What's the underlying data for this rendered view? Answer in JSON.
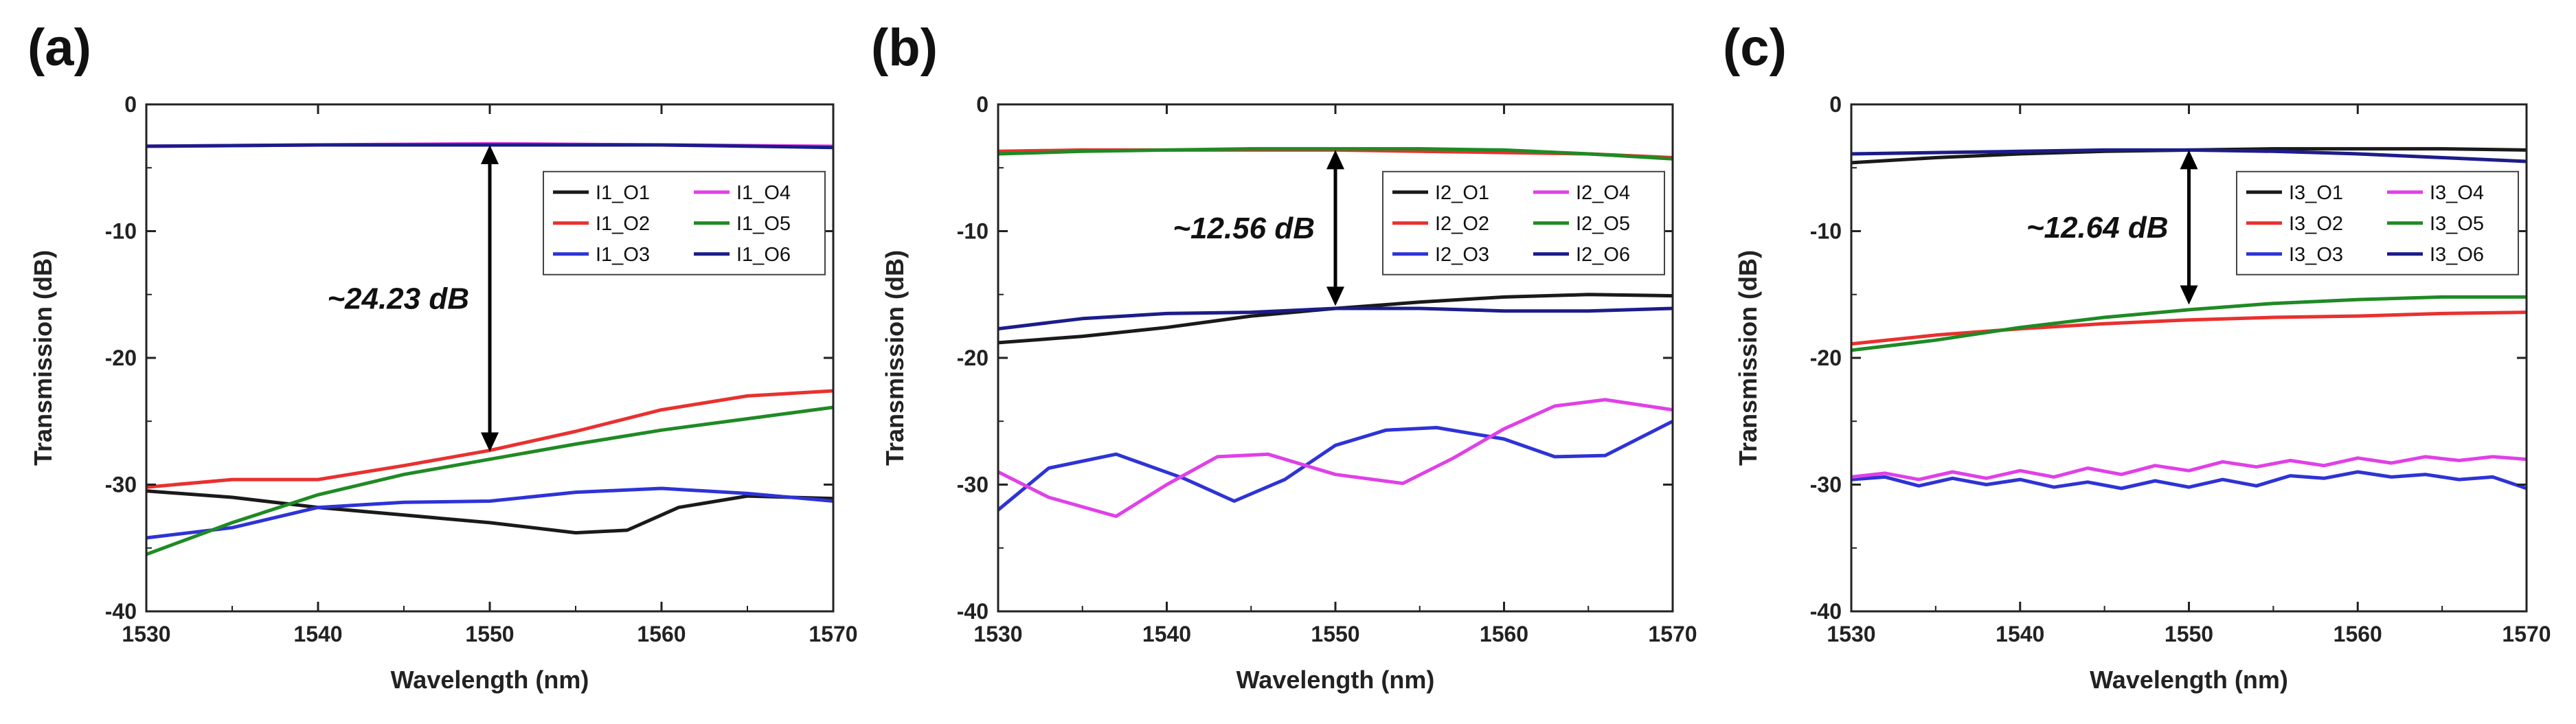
{
  "figure": {
    "panel_count": 3
  },
  "chart_data": [
    {
      "type": "line",
      "panel_label": "(a)",
      "xlabel": "Wavelength (nm)",
      "ylabel": "Transmission (dB)",
      "xlim": [
        1530,
        1570
      ],
      "ylim": [
        -40,
        0
      ],
      "xticks": [
        1530,
        1540,
        1550,
        1560,
        1570
      ],
      "yticks": [
        -40,
        -30,
        -20,
        -10,
        0
      ],
      "legend_position": "top-right",
      "annotation": {
        "text": "~24.23 dB",
        "arrow_x": 1550,
        "arrow_y_top": -3.2,
        "arrow_y_bottom": -27.4
      },
      "series": [
        {
          "name": "I1_O1",
          "color": "#1a1a1a",
          "x": [
            1530,
            1535,
            1540,
            1545,
            1550,
            1555,
            1558,
            1561,
            1565,
            1570
          ],
          "y": [
            -30.5,
            -31.0,
            -31.8,
            -32.4,
            -33.0,
            -33.8,
            -33.6,
            -31.8,
            -30.9,
            -31.1
          ]
        },
        {
          "name": "I1_O2",
          "color": "#e8312f",
          "x": [
            1530,
            1535,
            1540,
            1545,
            1550,
            1555,
            1560,
            1565,
            1570
          ],
          "y": [
            -30.2,
            -29.6,
            -29.6,
            -28.5,
            -27.3,
            -25.8,
            -24.1,
            -23.0,
            -22.6
          ]
        },
        {
          "name": "I1_O3",
          "color": "#2e33d6",
          "x": [
            1530,
            1535,
            1540,
            1545,
            1550,
            1555,
            1560,
            1565,
            1570
          ],
          "y": [
            -34.2,
            -33.4,
            -31.8,
            -31.4,
            -31.3,
            -30.6,
            -30.3,
            -30.7,
            -31.3
          ]
        },
        {
          "name": "I1_O4",
          "color": "#e040e8",
          "x": [
            1530,
            1540,
            1550,
            1560,
            1570
          ],
          "y": [
            -3.3,
            -3.2,
            -3.1,
            -3.2,
            -3.3
          ]
        },
        {
          "name": "I1_O5",
          "color": "#1f8a24",
          "x": [
            1530,
            1535,
            1540,
            1545,
            1550,
            1555,
            1560,
            1565,
            1570
          ],
          "y": [
            -35.5,
            -33.0,
            -30.8,
            -29.2,
            -28.0,
            -26.8,
            -25.7,
            -24.8,
            -23.9
          ]
        },
        {
          "name": "I1_O6",
          "color": "#1c1c8a",
          "x": [
            1530,
            1540,
            1550,
            1560,
            1570
          ],
          "y": [
            -3.3,
            -3.2,
            -3.2,
            -3.2,
            -3.4
          ]
        }
      ]
    },
    {
      "type": "line",
      "panel_label": "(b)",
      "xlabel": "Wavelength (nm)",
      "ylabel": "Transmission (dB)",
      "xlim": [
        1530,
        1570
      ],
      "ylim": [
        -40,
        0
      ],
      "xticks": [
        1530,
        1540,
        1550,
        1560,
        1570
      ],
      "yticks": [
        -40,
        -30,
        -20,
        -10,
        0
      ],
      "legend_position": "top-right",
      "annotation": {
        "text": "~12.56 dB",
        "arrow_x": 1550,
        "arrow_y_top": -3.6,
        "arrow_y_bottom": -15.9
      },
      "series": [
        {
          "name": "I2_O1",
          "color": "#1a1a1a",
          "x": [
            1530,
            1535,
            1540,
            1545,
            1550,
            1555,
            1560,
            1565,
            1570
          ],
          "y": [
            -18.8,
            -18.3,
            -17.6,
            -16.7,
            -16.1,
            -15.6,
            -15.2,
            -15.0,
            -15.1
          ]
        },
        {
          "name": "I2_O2",
          "color": "#e8312f",
          "x": [
            1530,
            1535,
            1540,
            1545,
            1550,
            1555,
            1560,
            1565,
            1570
          ],
          "y": [
            -3.7,
            -3.6,
            -3.6,
            -3.6,
            -3.6,
            -3.7,
            -3.8,
            -3.9,
            -4.2
          ]
        },
        {
          "name": "I2_O3",
          "color": "#2e33d6",
          "x": [
            1530,
            1533,
            1537,
            1541,
            1544,
            1547,
            1550,
            1553,
            1556,
            1560,
            1563,
            1566,
            1570
          ],
          "y": [
            -32.0,
            -28.7,
            -27.6,
            -29.5,
            -31.3,
            -29.6,
            -26.9,
            -25.7,
            -25.5,
            -26.4,
            -27.8,
            -27.7,
            -25.0
          ]
        },
        {
          "name": "I2_O4",
          "color": "#e040e8",
          "x": [
            1530,
            1533,
            1537,
            1540,
            1543,
            1546,
            1550,
            1554,
            1557,
            1560,
            1563,
            1566,
            1570
          ],
          "y": [
            -29.0,
            -31.0,
            -32.5,
            -30.0,
            -27.8,
            -27.6,
            -29.2,
            -29.9,
            -27.9,
            -25.6,
            -23.8,
            -23.3,
            -24.1
          ]
        },
        {
          "name": "I2_O5",
          "color": "#1f8a24",
          "x": [
            1530,
            1535,
            1540,
            1545,
            1550,
            1555,
            1560,
            1565,
            1570
          ],
          "y": [
            -3.9,
            -3.7,
            -3.6,
            -3.5,
            -3.5,
            -3.5,
            -3.6,
            -3.9,
            -4.3
          ]
        },
        {
          "name": "I2_O6",
          "color": "#1c1c8a",
          "x": [
            1530,
            1535,
            1540,
            1545,
            1550,
            1555,
            1560,
            1565,
            1570
          ],
          "y": [
            -17.7,
            -16.9,
            -16.5,
            -16.4,
            -16.1,
            -16.1,
            -16.3,
            -16.3,
            -16.1
          ]
        }
      ]
    },
    {
      "type": "line",
      "panel_label": "(c)",
      "xlabel": "Wavelength (nm)",
      "ylabel": "Transmission (dB)",
      "xlim": [
        1530,
        1570
      ],
      "ylim": [
        -40,
        0
      ],
      "xticks": [
        1530,
        1540,
        1550,
        1560,
        1570
      ],
      "yticks": [
        -40,
        -30,
        -20,
        -10,
        0
      ],
      "legend_position": "top-right",
      "annotation": {
        "text": "~12.64 dB",
        "arrow_x": 1550,
        "arrow_y_top": -3.6,
        "arrow_y_bottom": -15.8
      },
      "series": [
        {
          "name": "I3_O1",
          "color": "#1a1a1a",
          "x": [
            1530,
            1535,
            1540,
            1545,
            1550,
            1555,
            1560,
            1565,
            1570
          ],
          "y": [
            -4.6,
            -4.2,
            -3.9,
            -3.7,
            -3.6,
            -3.5,
            -3.5,
            -3.5,
            -3.6
          ]
        },
        {
          "name": "I3_O2",
          "color": "#e8312f",
          "x": [
            1530,
            1535,
            1540,
            1545,
            1550,
            1555,
            1560,
            1565,
            1570
          ],
          "y": [
            -18.9,
            -18.2,
            -17.7,
            -17.3,
            -17.0,
            -16.8,
            -16.7,
            -16.5,
            -16.4
          ]
        },
        {
          "name": "I3_O3",
          "color": "#2e33d6",
          "x": [
            1530,
            1532,
            1534,
            1536,
            1538,
            1540,
            1542,
            1544,
            1546,
            1548,
            1550,
            1552,
            1554,
            1556,
            1558,
            1560,
            1562,
            1564,
            1566,
            1568,
            1570
          ],
          "y": [
            -29.6,
            -29.4,
            -30.1,
            -29.5,
            -30.0,
            -29.6,
            -30.2,
            -29.8,
            -30.3,
            -29.7,
            -30.2,
            -29.6,
            -30.1,
            -29.3,
            -29.5,
            -29.0,
            -29.4,
            -29.2,
            -29.6,
            -29.4,
            -30.3
          ]
        },
        {
          "name": "I3_O4",
          "color": "#e040e8",
          "x": [
            1530,
            1532,
            1534,
            1536,
            1538,
            1540,
            1542,
            1544,
            1546,
            1548,
            1550,
            1552,
            1554,
            1556,
            1558,
            1560,
            1562,
            1564,
            1566,
            1568,
            1570
          ],
          "y": [
            -29.4,
            -29.1,
            -29.6,
            -29.0,
            -29.5,
            -28.9,
            -29.4,
            -28.7,
            -29.2,
            -28.5,
            -28.9,
            -28.2,
            -28.6,
            -28.1,
            -28.5,
            -27.9,
            -28.3,
            -27.8,
            -28.1,
            -27.8,
            -28.0
          ]
        },
        {
          "name": "I3_O5",
          "color": "#1f8a24",
          "x": [
            1530,
            1535,
            1540,
            1545,
            1550,
            1555,
            1560,
            1565,
            1570
          ],
          "y": [
            -19.4,
            -18.6,
            -17.6,
            -16.8,
            -16.2,
            -15.7,
            -15.4,
            -15.2,
            -15.2
          ]
        },
        {
          "name": "I3_O6",
          "color": "#1c1c8a",
          "x": [
            1530,
            1535,
            1540,
            1545,
            1550,
            1555,
            1560,
            1565,
            1570
          ],
          "y": [
            -3.9,
            -3.8,
            -3.7,
            -3.6,
            -3.6,
            -3.7,
            -3.9,
            -4.2,
            -4.5
          ]
        }
      ]
    }
  ]
}
